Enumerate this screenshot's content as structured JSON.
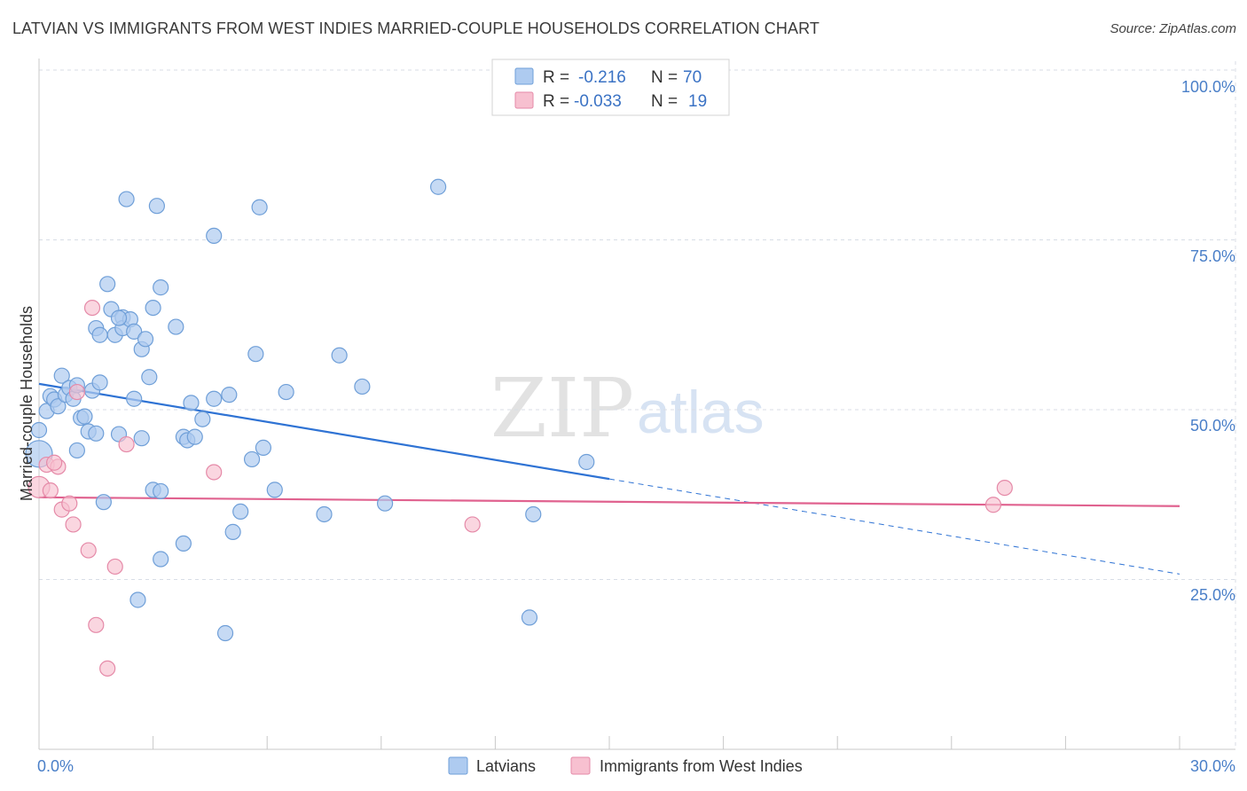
{
  "header": {
    "title": "LATVIAN VS IMMIGRANTS FROM WEST INDIES MARRIED-COUPLE HOUSEHOLDS CORRELATION CHART",
    "source": "Source: ZipAtlas.com"
  },
  "watermark": {
    "zip": "ZIP",
    "atlas": "atlas"
  },
  "legend_top": {
    "rows": [
      {
        "r_label": "R =",
        "r_value": "-0.216",
        "n_label": "N =",
        "n_value": "70",
        "color": "#aecbf0",
        "border": "#6f9fd8"
      },
      {
        "r_label": "R =",
        "r_value": "-0.033",
        "n_label": "N =",
        "n_value": "19",
        "color": "#f7c0d0",
        "border": "#e58aa8"
      }
    ]
  },
  "chart_data": {
    "type": "scatter",
    "title": "LATVIAN VS IMMIGRANTS FROM WEST INDIES MARRIED-COUPLE HOUSEHOLDS CORRELATION CHART",
    "xlabel": "",
    "ylabel": "Married-couple Households",
    "xlim": [
      0,
      30
    ],
    "ylim": [
      0,
      100
    ],
    "x_tick_labels": [
      "0.0%",
      "30.0%"
    ],
    "y_ticks": [
      25,
      50,
      75,
      100
    ],
    "y_tick_labels": [
      "25.0%",
      "50.0%",
      "75.0%",
      "100.0%"
    ],
    "grid": true,
    "colors": {
      "latvians_fill": "#aecbf0",
      "latvians_stroke": "#6f9fd8",
      "latvians_line": "#2f73d4",
      "wi_fill": "#f7c0d0",
      "wi_stroke": "#e58aa8",
      "wi_line": "#e0628f",
      "grid": "#d8dde6"
    },
    "series": [
      {
        "name": "Latvians",
        "trend": {
          "x0": 0,
          "y0": 53.8,
          "x1": 15,
          "y1": 39.8,
          "dash_to_x": 30,
          "dash_to_y": 25.8
        },
        "points": [
          [
            0,
            43.5
          ],
          [
            0,
            47
          ],
          [
            0.2,
            49.8
          ],
          [
            0.3,
            52
          ],
          [
            0.4,
            51.5
          ],
          [
            0.5,
            50.5
          ],
          [
            0.6,
            55
          ],
          [
            0.7,
            52.2
          ],
          [
            0.8,
            53.2
          ],
          [
            0.9,
            51.6
          ],
          [
            1.0,
            44
          ],
          [
            1.0,
            53.6
          ],
          [
            1.1,
            48.8
          ],
          [
            1.2,
            49
          ],
          [
            1.3,
            46.8
          ],
          [
            1.4,
            52.8
          ],
          [
            1.5,
            46.5
          ],
          [
            1.5,
            62
          ],
          [
            1.6,
            61
          ],
          [
            1.6,
            54
          ],
          [
            1.7,
            36.4
          ],
          [
            1.8,
            68.5
          ],
          [
            1.9,
            64.8
          ],
          [
            2.0,
            61
          ],
          [
            2.1,
            46.4
          ],
          [
            2.2,
            63.6
          ],
          [
            2.2,
            62
          ],
          [
            2.3,
            81
          ],
          [
            2.4,
            63.3
          ],
          [
            2.5,
            51.6
          ],
          [
            2.5,
            61.5
          ],
          [
            2.6,
            22
          ],
          [
            2.7,
            45.8
          ],
          [
            2.7,
            58.9
          ],
          [
            2.8,
            60.4
          ],
          [
            2.9,
            54.8
          ],
          [
            3.0,
            38.2
          ],
          [
            3.0,
            65
          ],
          [
            3.1,
            80
          ],
          [
            3.2,
            38
          ],
          [
            3.2,
            68
          ],
          [
            3.2,
            28
          ],
          [
            3.6,
            62.2
          ],
          [
            3.8,
            46
          ],
          [
            3.8,
            30.3
          ],
          [
            3.9,
            45.5
          ],
          [
            4.0,
            51
          ],
          [
            4.1,
            46
          ],
          [
            4.3,
            48.6
          ],
          [
            4.6,
            75.6
          ],
          [
            4.6,
            51.6
          ],
          [
            4.9,
            17.1
          ],
          [
            5.0,
            52.2
          ],
          [
            5.1,
            32
          ],
          [
            5.3,
            35
          ],
          [
            5.6,
            42.7
          ],
          [
            5.7,
            58.2
          ],
          [
            5.8,
            79.8
          ],
          [
            5.9,
            44.4
          ],
          [
            6.2,
            38.2
          ],
          [
            6.5,
            52.6
          ],
          [
            7.5,
            34.6
          ],
          [
            7.9,
            58
          ],
          [
            8.5,
            53.4
          ],
          [
            9.1,
            36.2
          ],
          [
            10.5,
            82.8
          ],
          [
            13,
            34.6
          ],
          [
            12.9,
            19.4
          ],
          [
            14.4,
            42.3
          ],
          [
            2.1,
            63.5
          ]
        ]
      },
      {
        "name": "Immigrants from West Indies",
        "trend": {
          "x0": 0,
          "y0": 37.1,
          "x1": 30,
          "y1": 35.8
        },
        "points": [
          [
            0,
            38.6
          ],
          [
            0.2,
            41.9
          ],
          [
            0.3,
            38.1
          ],
          [
            0.5,
            41.6
          ],
          [
            0.6,
            35.3
          ],
          [
            0.8,
            36.2
          ],
          [
            0.9,
            33.1
          ],
          [
            1.0,
            52.6
          ],
          [
            1.3,
            29.3
          ],
          [
            1.4,
            65
          ],
          [
            1.5,
            18.3
          ],
          [
            1.8,
            11.9
          ],
          [
            2.0,
            26.9
          ],
          [
            2.3,
            44.9
          ],
          [
            4.6,
            40.8
          ],
          [
            11.4,
            33.1
          ],
          [
            25.1,
            36
          ],
          [
            25.4,
            38.5
          ],
          [
            0.4,
            42.2
          ]
        ]
      }
    ]
  },
  "legend_bottom": {
    "items": [
      {
        "label": "Latvians"
      },
      {
        "label": "Immigrants from West Indies"
      }
    ]
  }
}
